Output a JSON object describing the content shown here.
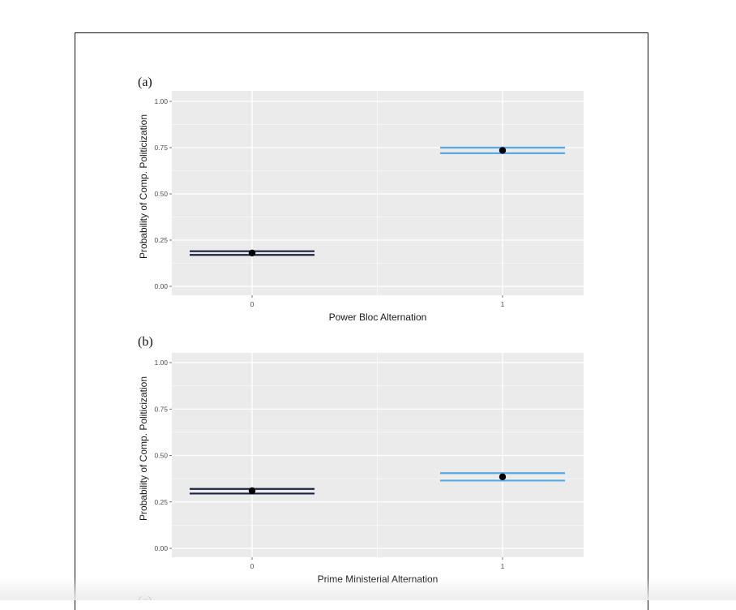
{
  "chart_data": [
    {
      "panel_label": "(a)",
      "type": "scatter",
      "xlabel": "Power Bloc Alternation",
      "ylabel": "Probability of Comp. Politicization",
      "categories": [
        "0",
        "1"
      ],
      "ylim": [
        0,
        1
      ],
      "yticks": [
        "0.00",
        "0.25",
        "0.50",
        "0.75",
        "1.00"
      ],
      "grid": true,
      "points": [
        {
          "x": "0",
          "y": 0.18,
          "lower": 0.17,
          "upper": 0.19,
          "color": "#1c2340"
        },
        {
          "x": "1",
          "y": 0.735,
          "lower": 0.72,
          "upper": 0.75,
          "color": "#56a8e6"
        }
      ]
    },
    {
      "panel_label": "(b)",
      "type": "scatter",
      "xlabel": "Prime Ministerial Alternation",
      "ylabel": "Probability of Comp. Politicization",
      "categories": [
        "0",
        "1"
      ],
      "ylim": [
        0,
        1
      ],
      "yticks": [
        "0.00",
        "0.25",
        "0.50",
        "0.75",
        "1.00"
      ],
      "grid": true,
      "points": [
        {
          "x": "0",
          "y": 0.31,
          "lower": 0.295,
          "upper": 0.32,
          "color": "#1c2340"
        },
        {
          "x": "1",
          "y": 0.385,
          "lower": 0.365,
          "upper": 0.405,
          "color": "#56a8e6"
        }
      ]
    }
  ],
  "next_panel_label": "(c)",
  "colors": {
    "panel_bg": "#ebebeb",
    "grid": "#ffffff",
    "point": "#000000"
  }
}
